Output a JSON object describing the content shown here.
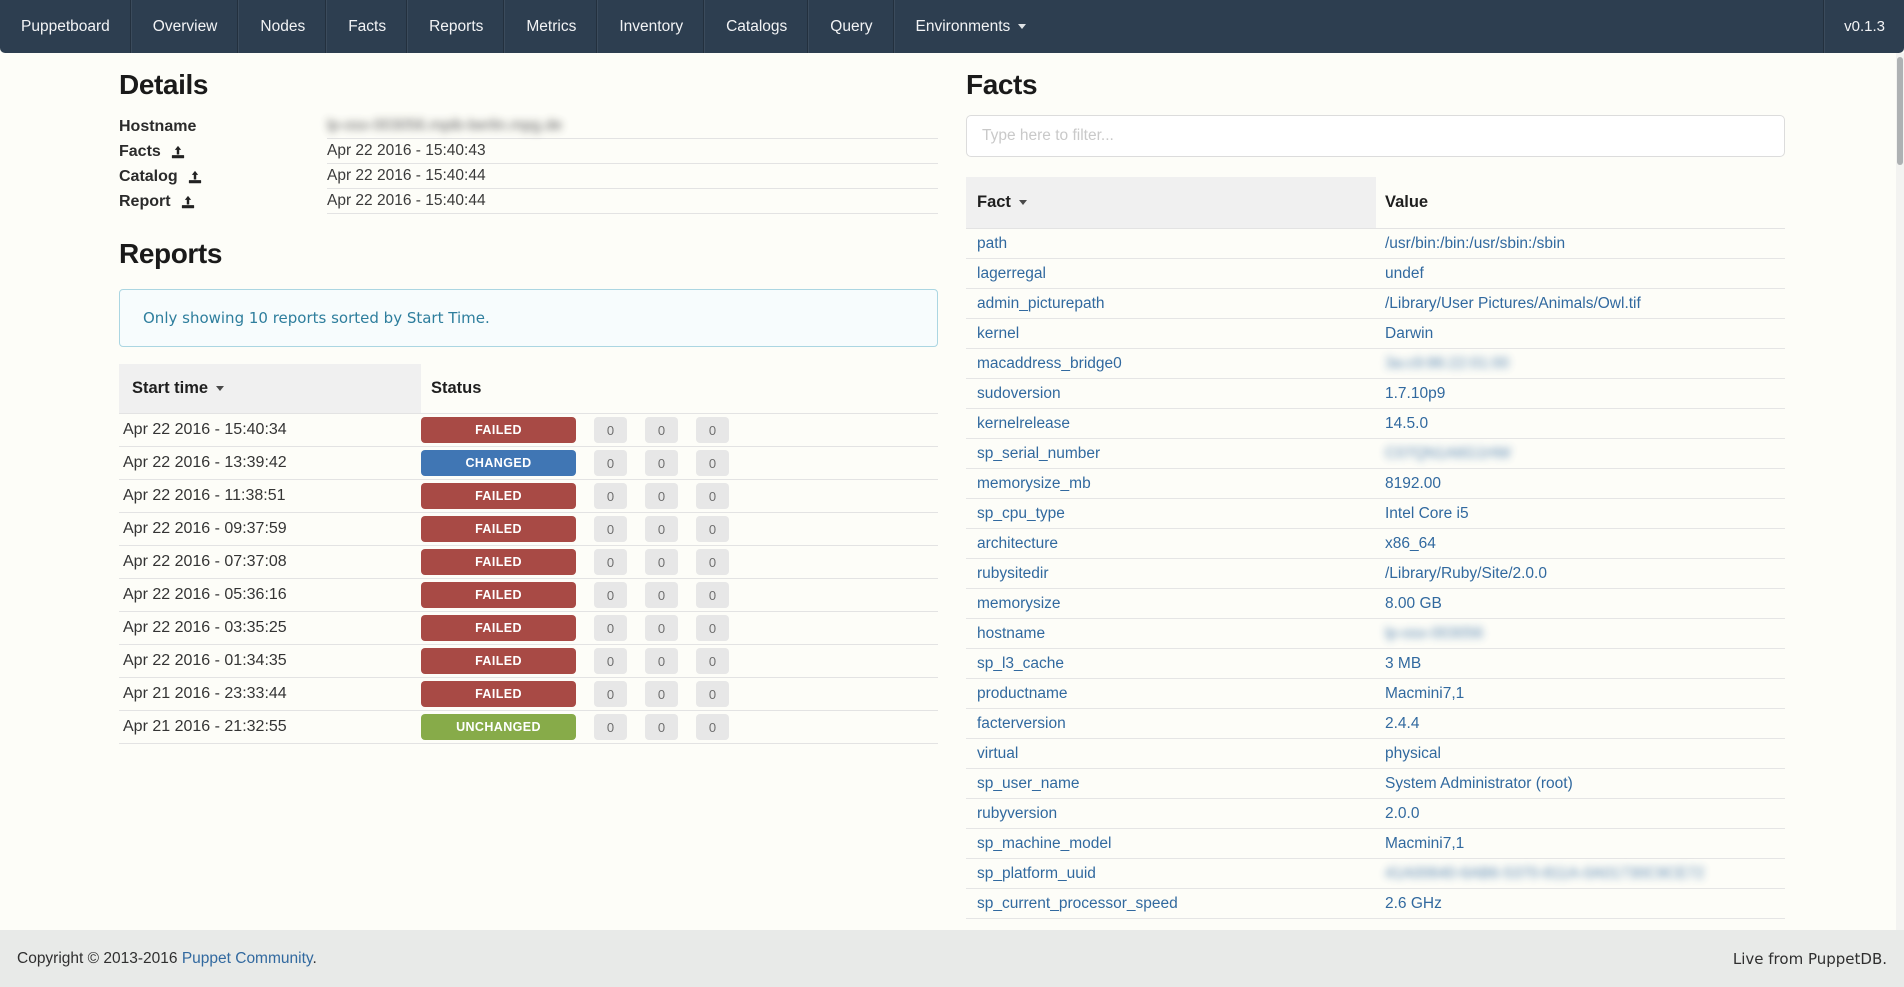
{
  "colors": {
    "navbar_bg": "#2d3e50",
    "link": "#31699f",
    "status": {
      "FAILED": "#a84a45",
      "CHANGED": "#4076b4",
      "UNCHANGED": "#87ab49"
    },
    "notice_text": "#2e7e9d",
    "notice_border": "#abd6e2",
    "header_cell_bg": "#f0f0f0",
    "footer_bg": "#e8eae8"
  },
  "navbar": {
    "items": [
      {
        "label": "Puppetboard"
      },
      {
        "label": "Overview"
      },
      {
        "label": "Nodes"
      },
      {
        "label": "Facts"
      },
      {
        "label": "Reports"
      },
      {
        "label": "Metrics"
      },
      {
        "label": "Inventory"
      },
      {
        "label": "Catalogs"
      },
      {
        "label": "Query"
      },
      {
        "label": "Environments",
        "dropdown": true
      }
    ],
    "version": "v0.1.3"
  },
  "details": {
    "title": "Details",
    "rows": [
      {
        "label": "Hostname",
        "has_icon": false,
        "value": "lp-osx-003056.mpib-berlin.mpg.de",
        "blurred": true
      },
      {
        "label": "Facts",
        "has_icon": true,
        "value": "Apr 22 2016 - 15:40:43",
        "blurred": false
      },
      {
        "label": "Catalog",
        "has_icon": true,
        "value": "Apr 22 2016 - 15:40:44",
        "blurred": false
      },
      {
        "label": "Report",
        "has_icon": true,
        "value": "Apr 22 2016 - 15:40:44",
        "blurred": false
      }
    ]
  },
  "reports": {
    "title": "Reports",
    "notice": "Only showing 10 reports sorted by Start Time.",
    "columns": [
      "Start time",
      "Status"
    ],
    "sorted_column": "Start time",
    "rows": [
      {
        "start_time": "Apr 22 2016 - 15:40:34",
        "status": "FAILED",
        "counts": [
          0,
          0,
          0
        ]
      },
      {
        "start_time": "Apr 22 2016 - 13:39:42",
        "status": "CHANGED",
        "counts": [
          0,
          0,
          0
        ]
      },
      {
        "start_time": "Apr 22 2016 - 11:38:51",
        "status": "FAILED",
        "counts": [
          0,
          0,
          0
        ]
      },
      {
        "start_time": "Apr 22 2016 - 09:37:59",
        "status": "FAILED",
        "counts": [
          0,
          0,
          0
        ]
      },
      {
        "start_time": "Apr 22 2016 - 07:37:08",
        "status": "FAILED",
        "counts": [
          0,
          0,
          0
        ]
      },
      {
        "start_time": "Apr 22 2016 - 05:36:16",
        "status": "FAILED",
        "counts": [
          0,
          0,
          0
        ]
      },
      {
        "start_time": "Apr 22 2016 - 03:35:25",
        "status": "FAILED",
        "counts": [
          0,
          0,
          0
        ]
      },
      {
        "start_time": "Apr 22 2016 - 01:34:35",
        "status": "FAILED",
        "counts": [
          0,
          0,
          0
        ]
      },
      {
        "start_time": "Apr 21 2016 - 23:33:44",
        "status": "FAILED",
        "counts": [
          0,
          0,
          0
        ]
      },
      {
        "start_time": "Apr 21 2016 - 21:32:55",
        "status": "UNCHANGED",
        "counts": [
          0,
          0,
          0
        ]
      }
    ]
  },
  "facts": {
    "title": "Facts",
    "filter_placeholder": "Type here to filter...",
    "columns": [
      "Fact",
      "Value"
    ],
    "sorted_column": "Fact",
    "rows": [
      {
        "fact": "path",
        "value": "/usr/bin:/bin:/usr/sbin:/sbin",
        "blurred": false
      },
      {
        "fact": "lagerregal",
        "value": "undef",
        "blurred": false
      },
      {
        "fact": "admin_picturepath",
        "value": "/Library/User Pictures/Animals/Owl.tif",
        "blurred": false
      },
      {
        "fact": "kernel",
        "value": "Darwin",
        "blurred": false
      },
      {
        "fact": "macaddress_bridge0",
        "value": "3a:c9:86:22:01:00",
        "blurred": true
      },
      {
        "fact": "sudoversion",
        "value": "1.7.10p9",
        "blurred": false
      },
      {
        "fact": "kernelrelease",
        "value": "14.5.0",
        "blurred": false
      },
      {
        "fact": "sp_serial_number",
        "value": "C07QN1A6G1HW",
        "blurred": true
      },
      {
        "fact": "memorysize_mb",
        "value": "8192.00",
        "blurred": false
      },
      {
        "fact": "sp_cpu_type",
        "value": "Intel Core i5",
        "blurred": false
      },
      {
        "fact": "architecture",
        "value": "x86_64",
        "blurred": false
      },
      {
        "fact": "rubysitedir",
        "value": "/Library/Ruby/Site/2.0.0",
        "blurred": false
      },
      {
        "fact": "memorysize",
        "value": "8.00 GB",
        "blurred": false
      },
      {
        "fact": "hostname",
        "value": "lp-osx-003056",
        "blurred": true
      },
      {
        "fact": "sp_l3_cache",
        "value": "3 MB",
        "blurred": false
      },
      {
        "fact": "productname",
        "value": "Macmini7,1",
        "blurred": false
      },
      {
        "fact": "facterversion",
        "value": "2.4.4",
        "blurred": false
      },
      {
        "fact": "virtual",
        "value": "physical",
        "blurred": false
      },
      {
        "fact": "sp_user_name",
        "value": "System Administrator (root)",
        "blurred": false
      },
      {
        "fact": "rubyversion",
        "value": "2.0.0",
        "blurred": false
      },
      {
        "fact": "sp_machine_model",
        "value": "Macmini7,1",
        "blurred": false
      },
      {
        "fact": "sp_platform_uuid",
        "value": "41A00640-6AB6-5370-811A-0A01730C9CE72",
        "blurred": true
      },
      {
        "fact": "sp_current_processor_speed",
        "value": "2.6 GHz",
        "blurred": false
      }
    ]
  },
  "footer": {
    "copyright_prefix": "Copyright © 2013-2016 ",
    "copyright_link": "Puppet Community",
    "copyright_suffix": ".",
    "live_text": "Live from PuppetDB."
  }
}
